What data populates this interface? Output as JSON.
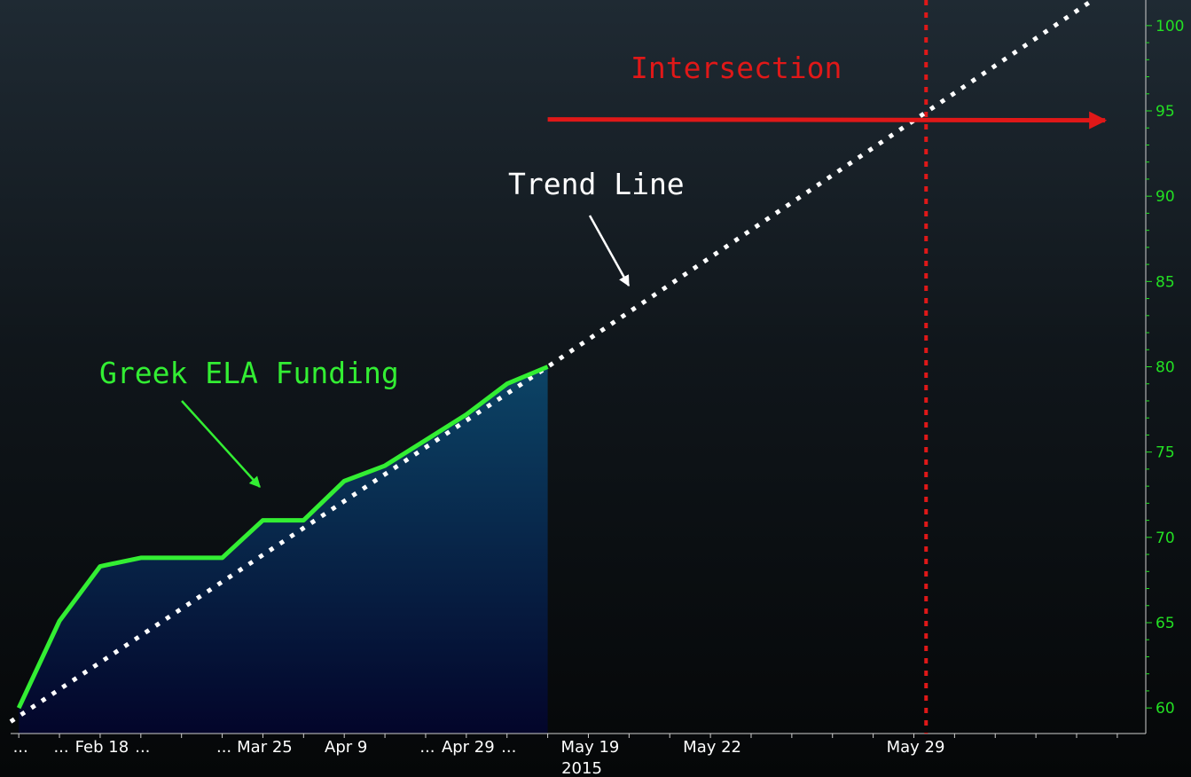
{
  "chart_data": {
    "type": "line",
    "series": [
      {
        "name": "Greek ELA Funding",
        "color": "#33ee33",
        "fill": "area",
        "points": [
          {
            "x": 0,
            "y": 60.0
          },
          {
            "x": 1,
            "y": 65.1
          },
          {
            "x": 2,
            "y": 68.3
          },
          {
            "x": 3,
            "y": 68.8
          },
          {
            "x": 4,
            "y": 68.8
          },
          {
            "x": 5,
            "y": 68.8
          },
          {
            "x": 6,
            "y": 71.0
          },
          {
            "x": 7,
            "y": 71.0
          },
          {
            "x": 8,
            "y": 73.3
          },
          {
            "x": 9,
            "y": 74.2
          },
          {
            "x": 10,
            "y": 75.7
          },
          {
            "x": 11,
            "y": 77.2
          },
          {
            "x": 12,
            "y": 79.0
          },
          {
            "x": 13,
            "y": 80.0
          }
        ]
      },
      {
        "name": "Trend Line",
        "color": "#ffffff",
        "style": "dotted",
        "points": [
          {
            "x": -0.2,
            "y": 59.2
          },
          {
            "x": 13,
            "y": 80.0
          },
          {
            "x": 26.4,
            "y": 101.5
          }
        ]
      }
    ],
    "vline": {
      "x": 22.3,
      "color": "#e01818",
      "style": "dotted"
    },
    "arrow": {
      "x_from": 13,
      "x_to": 26.7,
      "y": 94.5,
      "color": "#e01818"
    },
    "x_ticks": [
      {
        "x": 0,
        "label": "..."
      },
      {
        "x": 1,
        "label": "..."
      },
      {
        "x": 2,
        "label": "Feb 18"
      },
      {
        "x": 3,
        "label": "..."
      },
      {
        "x": 5,
        "label": "..."
      },
      {
        "x": 6,
        "label": "Mar 25"
      },
      {
        "x": 8,
        "label": "Apr 9"
      },
      {
        "x": 10,
        "label": "..."
      },
      {
        "x": 11,
        "label": "Apr 29"
      },
      {
        "x": 12,
        "label": "..."
      },
      {
        "x": 14,
        "label": "May 19"
      },
      {
        "x": 17,
        "label": "May 22"
      },
      {
        "x": 22,
        "label": "May 29"
      }
    ],
    "x_year_label": "2015",
    "yticks": [
      60,
      65,
      70,
      75,
      80,
      85,
      90,
      95,
      100
    ],
    "ylim": [
      58.5,
      101.5
    ],
    "xlim": [
      -0.2,
      27.7
    ],
    "y_axis_side": "right",
    "grid": false,
    "annotations": [
      {
        "text": "Greek ELA Funding",
        "color": "#33ee33"
      },
      {
        "text": "Trend Line",
        "color": "#ffffff"
      },
      {
        "text": "Intersection",
        "color": "#e01818"
      }
    ]
  }
}
